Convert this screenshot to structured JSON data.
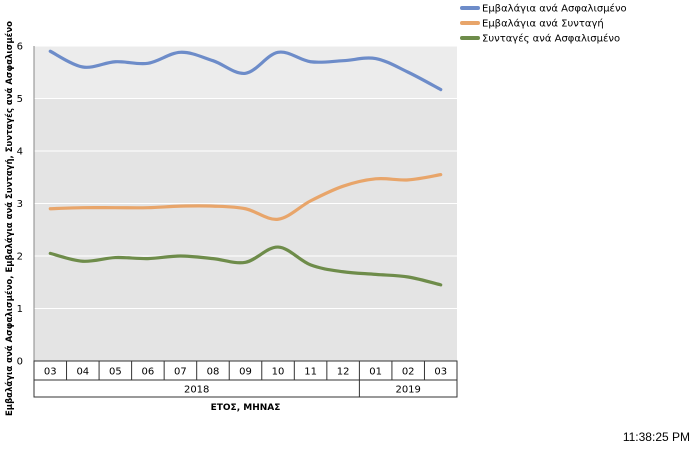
{
  "chart_data": {
    "type": "line",
    "ylabel": "Εμβαλάγια ανά Ασφαλισμένο, Εμβαλάγια ανά Συνταγή, Συνταγές ανά Ασφαλισμένο",
    "xlabel": "ΕΤΟΣ, ΜΗΝΑΣ",
    "ylim": [
      0,
      6
    ],
    "yticks": [
      "0",
      "1",
      "2",
      "3",
      "4",
      "5",
      "6"
    ],
    "months": [
      "03",
      "04",
      "05",
      "06",
      "07",
      "08",
      "09",
      "10",
      "11",
      "12",
      "01",
      "02",
      "03"
    ],
    "years": [
      {
        "label": "2018",
        "count": 10
      },
      {
        "label": "2019",
        "count": 3
      }
    ],
    "grid": true,
    "legend_position": "top-right",
    "series": [
      {
        "name": "Εμβαλάγια ανά Ασφαλισμένο",
        "color": "#6d8cc9",
        "values": [
          5.9,
          5.6,
          5.7,
          5.67,
          5.88,
          5.72,
          5.48,
          5.88,
          5.7,
          5.72,
          5.76,
          5.5,
          5.17
        ]
      },
      {
        "name": "Εμβαλάγια ανά Συνταγή",
        "color": "#e8a56a",
        "values": [
          2.9,
          2.92,
          2.92,
          2.92,
          2.95,
          2.95,
          2.9,
          2.7,
          3.05,
          3.33,
          3.47,
          3.45,
          3.55
        ]
      },
      {
        "name": "Συνταγές ανά Ασφαλισμένο",
        "color": "#6e8c4a",
        "values": [
          2.05,
          1.9,
          1.97,
          1.95,
          2.0,
          1.95,
          1.88,
          2.17,
          1.83,
          1.7,
          1.65,
          1.6,
          1.45
        ]
      }
    ]
  },
  "status": {
    "time": "11:38:25 PM"
  }
}
